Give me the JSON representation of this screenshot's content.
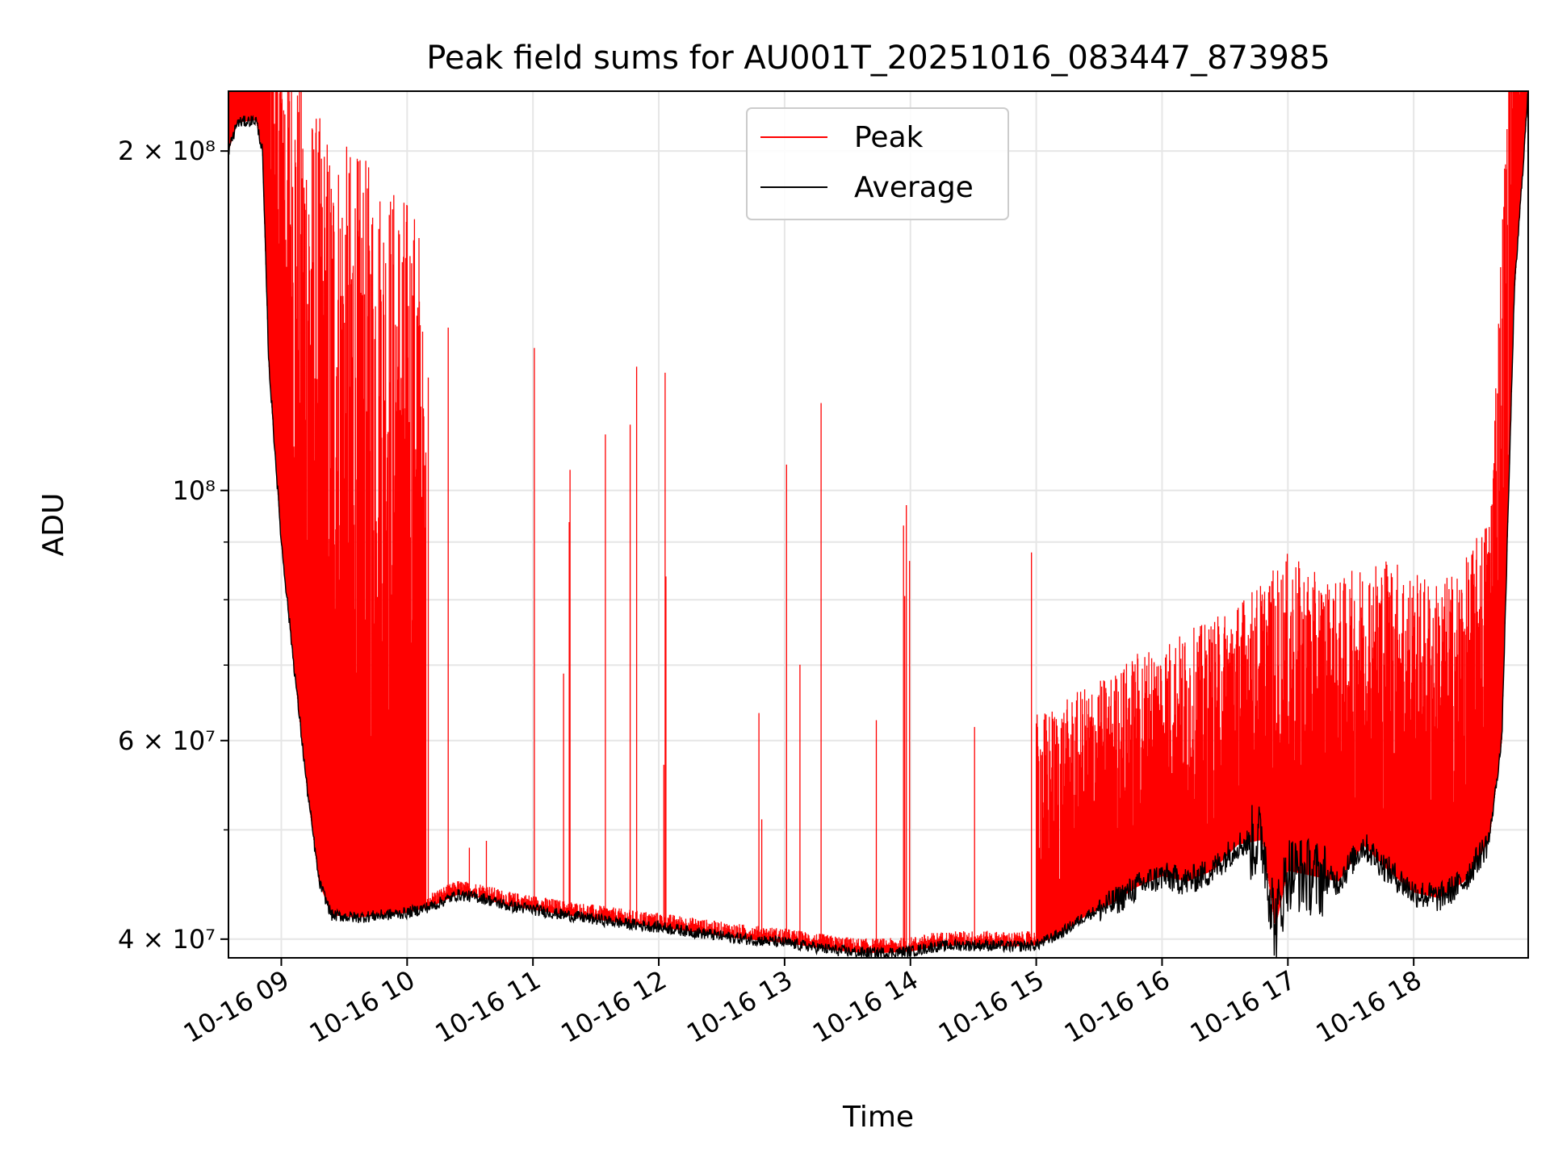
{
  "chart_data": {
    "type": "line",
    "title": "Peak field sums for AU001T_20251016_083447_873985",
    "xlabel": "Time",
    "ylabel": "ADU",
    "yscale": "log",
    "ylim": [
      38500000,
      226000000
    ],
    "xlim": [
      8.58,
      18.91
    ],
    "x_units": "hours on 2025-10-16",
    "grid": true,
    "legend_position": "upper-center",
    "x_ticks": [
      {
        "value": 9,
        "label": "10-16 09"
      },
      {
        "value": 10,
        "label": "10-16 10"
      },
      {
        "value": 11,
        "label": "10-16 11"
      },
      {
        "value": 12,
        "label": "10-16 12"
      },
      {
        "value": 13,
        "label": "10-16 13"
      },
      {
        "value": 14,
        "label": "10-16 14"
      },
      {
        "value": 15,
        "label": "10-16 15"
      },
      {
        "value": 16,
        "label": "10-16 16"
      },
      {
        "value": 17,
        "label": "10-16 17"
      },
      {
        "value": 18,
        "label": "10-16 18"
      }
    ],
    "y_ticks": [
      {
        "value": 40000000,
        "label": "4 × 10⁷"
      },
      {
        "value": 60000000,
        "label": "6 × 10⁷"
      },
      {
        "value": 100000000,
        "label": "10⁸"
      },
      {
        "value": 200000000,
        "label": "2 × 10⁸"
      }
    ],
    "y_minor_ticks": [
      50000000,
      70000000,
      80000000,
      90000000
    ],
    "series": [
      {
        "name": "Peak",
        "color": "#ff0000",
        "x": [
          8.58,
          8.65,
          8.8,
          8.9,
          9.0,
          9.1,
          9.2,
          9.4,
          9.6,
          9.8,
          10.0,
          10.1,
          10.2,
          10.4,
          10.6,
          10.8,
          11.0,
          11.2,
          11.4,
          11.6,
          11.8,
          12.0,
          12.2,
          12.4,
          12.6,
          12.8,
          13.0,
          13.2,
          13.4,
          13.6,
          13.8,
          14.0,
          14.2,
          14.4,
          14.6,
          14.8,
          15.0,
          15.2,
          15.4,
          15.6,
          15.8,
          16.0,
          16.2,
          16.4,
          16.6,
          16.8,
          17.0,
          17.2,
          17.4,
          17.6,
          17.8,
          18.0,
          18.2,
          18.4,
          18.6,
          18.8,
          18.91
        ],
        "values": [
          222000000,
          226000000,
          226000000,
          200000000,
          170000000,
          150000000,
          140000000,
          130000000,
          125000000,
          120000000,
          115000000,
          110000000,
          43000000,
          43800000,
          43500000,
          42800000,
          42500000,
          42200000,
          41900000,
          41500000,
          41200000,
          41000000,
          40800000,
          40500000,
          40200000,
          40000000,
          39800000,
          39500000,
          39400000,
          39300000,
          39300000,
          39200000,
          39500000,
          39600000,
          39600000,
          39500000,
          39600000,
          40500000,
          42000000,
          43000000,
          45000000,
          46000000,
          47000000,
          48000000,
          50000000,
          52000000,
          55000000,
          53000000,
          52000000,
          54000000,
          55000000,
          53000000,
          52000000,
          54000000,
          60000000,
          200000000,
          226000000
        ]
      },
      {
        "name": "Average",
        "color": "#000000",
        "x": [
          8.58,
          8.65,
          8.8,
          8.85,
          8.9,
          9.0,
          9.1,
          9.2,
          9.3,
          9.4,
          9.6,
          9.8,
          10.0,
          10.2,
          10.4,
          10.6,
          10.8,
          11.0,
          11.2,
          11.4,
          11.6,
          11.8,
          12.0,
          12.2,
          12.4,
          12.6,
          12.8,
          13.0,
          13.2,
          13.4,
          13.6,
          13.8,
          14.0,
          14.2,
          14.4,
          14.6,
          14.8,
          15.0,
          15.2,
          15.4,
          15.6,
          15.8,
          16.0,
          16.2,
          16.4,
          16.6,
          16.8,
          16.9,
          17.0,
          17.2,
          17.4,
          17.6,
          17.8,
          18.0,
          18.2,
          18.4,
          18.6,
          18.7,
          18.8,
          18.91
        ],
        "values": [
          200000000,
          212000000,
          213000000,
          200000000,
          130000000,
          90000000,
          70000000,
          55000000,
          45000000,
          42000000,
          41800000,
          42000000,
          42200000,
          42800000,
          43800000,
          43500000,
          42800000,
          42500000,
          42100000,
          41800000,
          41500000,
          41200000,
          41000000,
          40700000,
          40400000,
          40100000,
          39900000,
          39700000,
          39400000,
          39100000,
          38900000,
          38900000,
          39000000,
          39400000,
          39500000,
          39500000,
          39400000,
          39500000,
          40500000,
          42000000,
          43000000,
          44500000,
          45500000,
          45000000,
          46000000,
          48500000,
          49000000,
          41000000,
          46000000,
          45500000,
          45000000,
          48500000,
          46000000,
          44000000,
          43500000,
          45000000,
          49000000,
          60000000,
          150000000,
          226000000
        ]
      }
    ]
  }
}
